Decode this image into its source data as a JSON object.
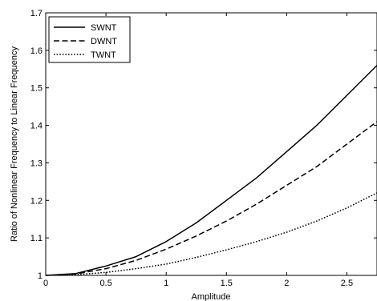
{
  "chart_data": {
    "type": "line",
    "title": "",
    "xlabel": "Amplitude",
    "ylabel": "Ratio of Nonlinear Frequency to Linear Frequency",
    "xlim": [
      0,
      2.75
    ],
    "ylim": [
      1,
      1.7
    ],
    "xticks": [
      0,
      0.5,
      1,
      1.5,
      2,
      2.5
    ],
    "xtick_labels": [
      "0",
      "0.5",
      "1",
      "1.5",
      "2",
      "2.5"
    ],
    "yticks": [
      1,
      1.1,
      1.2,
      1.3,
      1.4,
      1.5,
      1.6,
      1.7
    ],
    "ytick_labels": [
      "1",
      "1.1",
      "1.2",
      "1.3",
      "1.4",
      "1.5",
      "1.6",
      "1.7"
    ],
    "grid": false,
    "legend_position": "top-left",
    "x": [
      0,
      0.25,
      0.5,
      0.75,
      1.0,
      1.25,
      1.5,
      1.75,
      2.0,
      2.25,
      2.5,
      2.75
    ],
    "series": [
      {
        "name": "SWNT",
        "line_style": "solid",
        "color": "#000000",
        "values": [
          1.0,
          1.005,
          1.025,
          1.05,
          1.09,
          1.14,
          1.2,
          1.26,
          1.33,
          1.4,
          1.48,
          1.56
        ]
      },
      {
        "name": "DWNT",
        "line_style": "dashed",
        "color": "#000000",
        "values": [
          1.0,
          1.004,
          1.018,
          1.04,
          1.07,
          1.105,
          1.145,
          1.19,
          1.24,
          1.29,
          1.35,
          1.41
        ]
      },
      {
        "name": "TWNT",
        "line_style": "dotted",
        "color": "#000000",
        "values": [
          1.0,
          1.002,
          1.008,
          1.018,
          1.03,
          1.048,
          1.068,
          1.09,
          1.115,
          1.145,
          1.18,
          1.22
        ]
      }
    ]
  }
}
